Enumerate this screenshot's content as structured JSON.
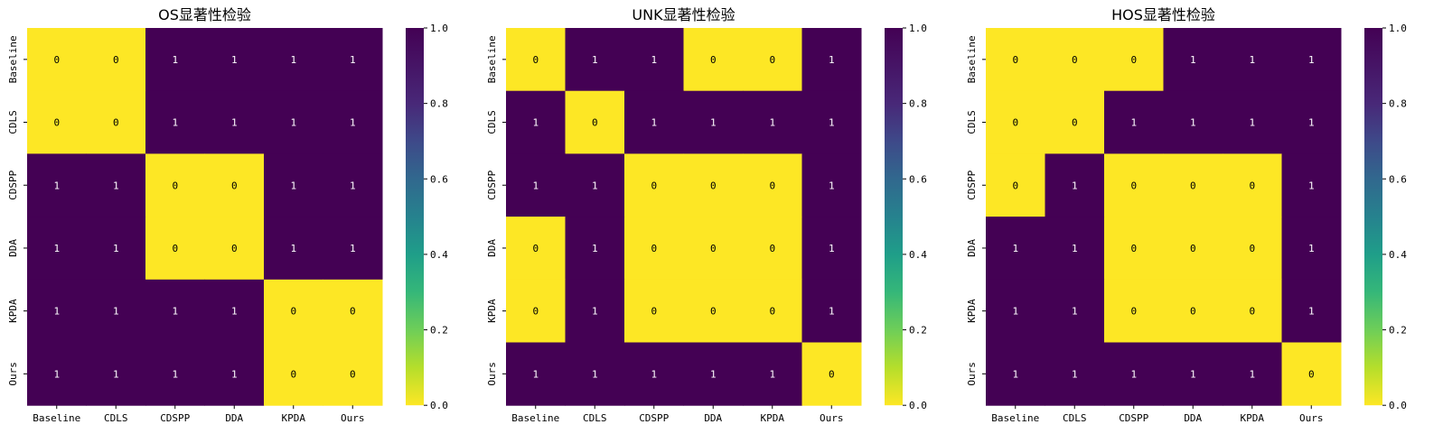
{
  "chart_data": [
    {
      "type": "heatmap",
      "title": "OS显著性检验",
      "xlabel": "",
      "ylabel": "",
      "categories": [
        "Baseline",
        "CDLS",
        "CDSPP",
        "DDA",
        "KPDA",
        "Ours"
      ],
      "values": [
        [
          0,
          0,
          1,
          1,
          1,
          1
        ],
        [
          0,
          0,
          1,
          1,
          1,
          1
        ],
        [
          1,
          1,
          0,
          0,
          1,
          1
        ],
        [
          1,
          1,
          0,
          0,
          1,
          1
        ],
        [
          1,
          1,
          1,
          1,
          0,
          0
        ],
        [
          1,
          1,
          1,
          1,
          0,
          0
        ]
      ],
      "colorbar": {
        "range": [
          0.0,
          1.0
        ],
        "ticks": [
          "0.0",
          "0.2",
          "0.4",
          "0.6",
          "0.8",
          "1.0"
        ],
        "colormap": "viridis_r"
      }
    },
    {
      "type": "heatmap",
      "title": "UNK显著性检验",
      "xlabel": "",
      "ylabel": "",
      "categories": [
        "Baseline",
        "CDLS",
        "CDSPP",
        "DDA",
        "KPDA",
        "Ours"
      ],
      "values": [
        [
          0,
          1,
          1,
          0,
          0,
          1
        ],
        [
          1,
          0,
          1,
          1,
          1,
          1
        ],
        [
          1,
          1,
          0,
          0,
          0,
          1
        ],
        [
          0,
          1,
          0,
          0,
          0,
          1
        ],
        [
          0,
          1,
          0,
          0,
          0,
          1
        ],
        [
          1,
          1,
          1,
          1,
          1,
          0
        ]
      ],
      "colorbar": {
        "range": [
          0.0,
          1.0
        ],
        "ticks": [
          "0.0",
          "0.2",
          "0.4",
          "0.6",
          "0.8",
          "1.0"
        ],
        "colormap": "viridis_r"
      }
    },
    {
      "type": "heatmap",
      "title": "HOS显著性检验",
      "xlabel": "",
      "ylabel": "",
      "categories": [
        "Baseline",
        "CDLS",
        "CDSPP",
        "DDA",
        "KPDA",
        "Ours"
      ],
      "values": [
        [
          0,
          0,
          0,
          1,
          1,
          1
        ],
        [
          0,
          0,
          1,
          1,
          1,
          1
        ],
        [
          0,
          1,
          0,
          0,
          0,
          1
        ],
        [
          1,
          1,
          0,
          0,
          0,
          1
        ],
        [
          1,
          1,
          0,
          0,
          0,
          1
        ],
        [
          1,
          1,
          1,
          1,
          1,
          0
        ]
      ],
      "colorbar": {
        "range": [
          0.0,
          1.0
        ],
        "ticks": [
          "0.0",
          "0.2",
          "0.4",
          "0.6",
          "0.8",
          "1.0"
        ],
        "colormap": "viridis_r"
      }
    }
  ],
  "colors": {
    "low": "#fde725",
    "high": "#440154"
  }
}
